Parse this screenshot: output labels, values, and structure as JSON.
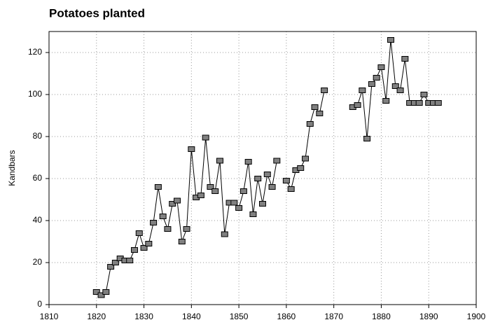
{
  "chart_data": {
    "type": "line",
    "title": "Potatoes planted",
    "y_label": "Kandbars",
    "x": [
      1820,
      1821,
      1822,
      1823,
      1824,
      1825,
      1826,
      1827,
      1828,
      1829,
      1830,
      1831,
      1832,
      1833,
      1834,
      1835,
      1836,
      1837,
      1838,
      1839,
      1840,
      1841,
      1842,
      1843,
      1844,
      1845,
      1846,
      1847,
      1848,
      1849,
      1850,
      1851,
      1852,
      1853,
      1854,
      1855,
      1856,
      1857,
      1858,
      1859,
      1860,
      1861,
      1862,
      1863,
      1864,
      1865,
      1866,
      1867,
      1868,
      1869,
      1870,
      1871,
      1872,
      1873,
      1874,
      1875,
      1876,
      1877,
      1878,
      1879,
      1880,
      1881,
      1882,
      1883,
      1884,
      1885,
      1886,
      1887,
      1888,
      1889,
      1890,
      1891,
      1892
    ],
    "series": [
      {
        "name": "Potatoes planted",
        "color": "#808080",
        "values": [
          6,
          4.5,
          6,
          18,
          20,
          22,
          21,
          21,
          26,
          34,
          27,
          29,
          39,
          56,
          42,
          36,
          48,
          49.5,
          30,
          36,
          74,
          51,
          52,
          79.5,
          56,
          54,
          68.5,
          33.5,
          48.5,
          48.5,
          46,
          54,
          68,
          43,
          60,
          48,
          62,
          56,
          68.5,
          null,
          59,
          55,
          64,
          65,
          69.5,
          86,
          94,
          91,
          102,
          null,
          null,
          null,
          null,
          null,
          94,
          95,
          102,
          79,
          105,
          108,
          113,
          97,
          126,
          104,
          102,
          117,
          96,
          96,
          96,
          100,
          96,
          96,
          96
        ]
      }
    ],
    "xlim": [
      1810,
      1900
    ],
    "xticks": [
      1810,
      1820,
      1830,
      1840,
      1850,
      1860,
      1870,
      1880,
      1890,
      1900
    ],
    "ylim": [
      0,
      130
    ],
    "yticks": [
      0,
      20,
      40,
      60,
      80,
      100,
      120
    ],
    "grid": true
  }
}
